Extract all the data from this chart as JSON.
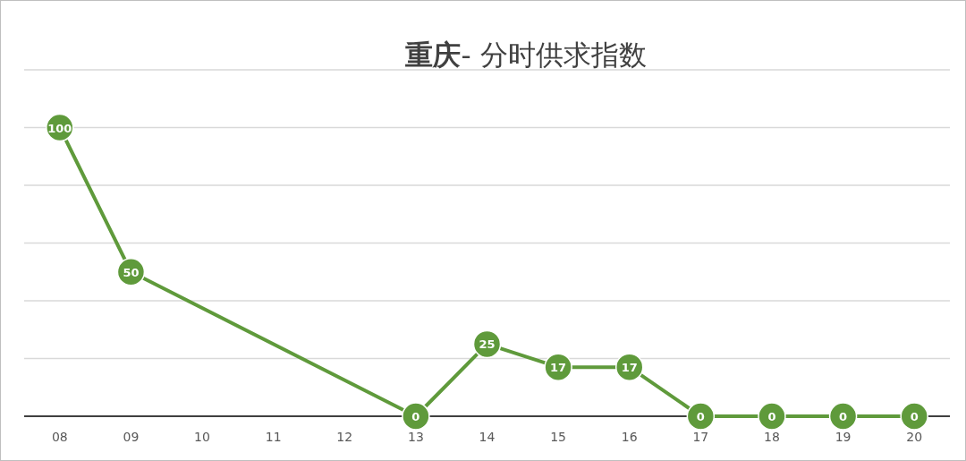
{
  "chart_data": {
    "type": "line",
    "title": "**重庆**- 分时供求指数",
    "categories": [
      "08",
      "09",
      "10",
      "11",
      "12",
      "13",
      "14",
      "15",
      "16",
      "17",
      "18",
      "19",
      "20"
    ],
    "series": [
      {
        "color": "#5f9a3b",
        "values": [
          100,
          50,
          null,
          null,
          null,
          0,
          25,
          17,
          17,
          0,
          0,
          0,
          0
        ]
      }
    ],
    "ylim": [
      0,
      120
    ],
    "yticks": [
      {
        "value": 0,
        "label": null
      },
      {
        "value": 20,
        "label": null
      },
      {
        "value": 40,
        "label": null
      },
      {
        "value": 60,
        "label": null
      },
      {
        "value": 80,
        "label": null
      },
      {
        "value": 100,
        "label": null
      },
      {
        "value": 120,
        "label": null
      }
    ],
    "grid": "y",
    "tick_labels": "x",
    "data_labels": true,
    "marker": "circle",
    "line_style": "solid"
  }
}
